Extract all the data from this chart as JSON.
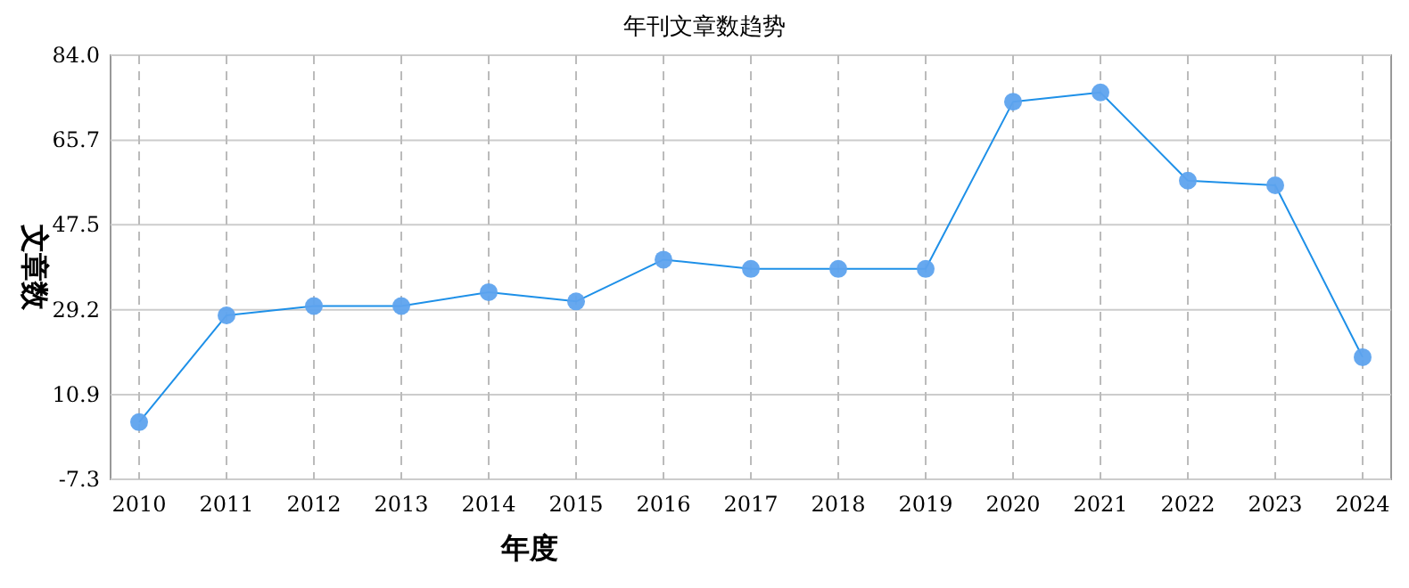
{
  "chart_data": {
    "type": "line",
    "title": "年刊文章数趋势",
    "xlabel": "年度",
    "ylabel": "文章数",
    "categories": [
      "2010",
      "2011",
      "2012",
      "2013",
      "2014",
      "2015",
      "2016",
      "2017",
      "2018",
      "2019",
      "2020",
      "2021",
      "2022",
      "2023",
      "2024"
    ],
    "series": [
      {
        "color": "#1e90e8",
        "values": [
          5,
          28,
          30,
          30,
          33,
          31,
          40,
          38,
          38,
          38,
          74,
          76,
          57,
          56,
          19
        ]
      }
    ],
    "ylim": [
      -7.3,
      84.0
    ],
    "yticks": [
      {
        "value": -7.3,
        "label": "-7.3"
      },
      {
        "value": 10.9,
        "label": "10.9"
      },
      {
        "value": 29.2,
        "label": "29.2"
      },
      {
        "value": 47.5,
        "label": "47.5"
      },
      {
        "value": 65.7,
        "label": "65.7"
      },
      {
        "value": 84.0,
        "label": "84.0"
      }
    ],
    "grid": true,
    "marker": "circle",
    "line_style": "solid"
  }
}
